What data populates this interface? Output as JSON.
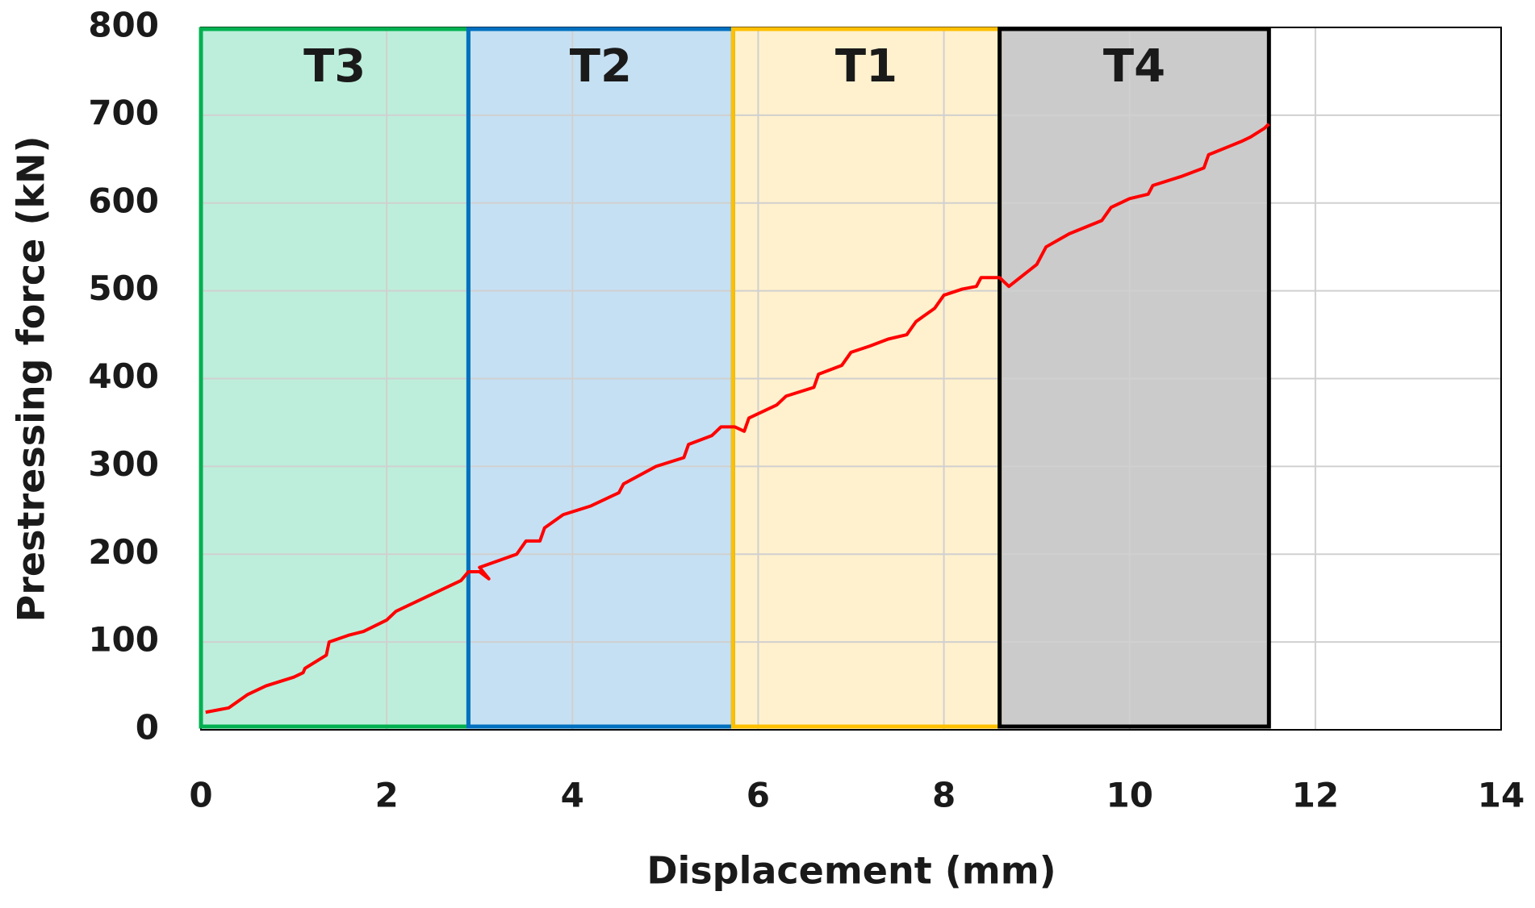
{
  "chart_data": {
    "type": "line",
    "x_label": "Displacement (mm)",
    "y_label": "Prestressing force (kN)",
    "xlim": [
      0,
      14
    ],
    "xticks": [
      0,
      2,
      4,
      6,
      8,
      10,
      12,
      14
    ],
    "ylim": [
      0,
      800
    ],
    "yticks": [
      0,
      100,
      200,
      300,
      400,
      500,
      600,
      700,
      800
    ],
    "grid": true,
    "regions": [
      {
        "label": "T3",
        "x": [
          0,
          2.88
        ],
        "color": "#00b050",
        "fill": "#bdeedb"
      },
      {
        "label": "T2",
        "x": [
          2.88,
          5.73
        ],
        "color": "#0070c0",
        "fill": "#c5e0f2"
      },
      {
        "label": "T1",
        "x": [
          5.73,
          8.6
        ],
        "color": "#ffc000",
        "fill": "#fff1cd"
      },
      {
        "label": "T4",
        "x": [
          8.6,
          11.5
        ],
        "color": "#000000",
        "fill": "#cbcbcb"
      }
    ],
    "series": [
      {
        "color": "#ff0000",
        "x": [
          0.05,
          0.3,
          0.5,
          0.7,
          1.0,
          1.1,
          1.12,
          1.35,
          1.38,
          1.6,
          1.75,
          2.0,
          2.1,
          2.4,
          2.6,
          2.8,
          2.88,
          3.0,
          3.1,
          3.0,
          3.4,
          3.5,
          3.65,
          3.7,
          3.9,
          4.2,
          4.5,
          4.55,
          4.9,
          5.2,
          5.25,
          5.5,
          5.6,
          5.75,
          5.85,
          5.9,
          6.2,
          6.3,
          6.6,
          6.65,
          6.9,
          7.0,
          7.2,
          7.4,
          7.6,
          7.7,
          7.9,
          8.0,
          8.2,
          8.35,
          8.4,
          8.6,
          8.7,
          9.0,
          9.1,
          9.35,
          9.7,
          9.8,
          10.0,
          10.2,
          10.25,
          10.55,
          10.8,
          10.85,
          11.2,
          11.3,
          11.45,
          11.5
        ],
        "values": [
          20,
          25,
          40,
          50,
          60,
          65,
          70,
          85,
          100,
          108,
          112,
          125,
          135,
          150,
          160,
          170,
          180,
          180,
          172,
          185,
          200,
          215,
          215,
          230,
          245,
          255,
          270,
          280,
          300,
          310,
          325,
          335,
          345,
          345,
          340,
          355,
          370,
          380,
          390,
          405,
          415,
          430,
          437,
          445,
          450,
          465,
          480,
          495,
          502,
          505,
          515,
          515,
          505,
          530,
          550,
          565,
          580,
          595,
          605,
          610,
          620,
          630,
          640,
          655,
          670,
          675,
          685,
          690
        ]
      }
    ]
  }
}
